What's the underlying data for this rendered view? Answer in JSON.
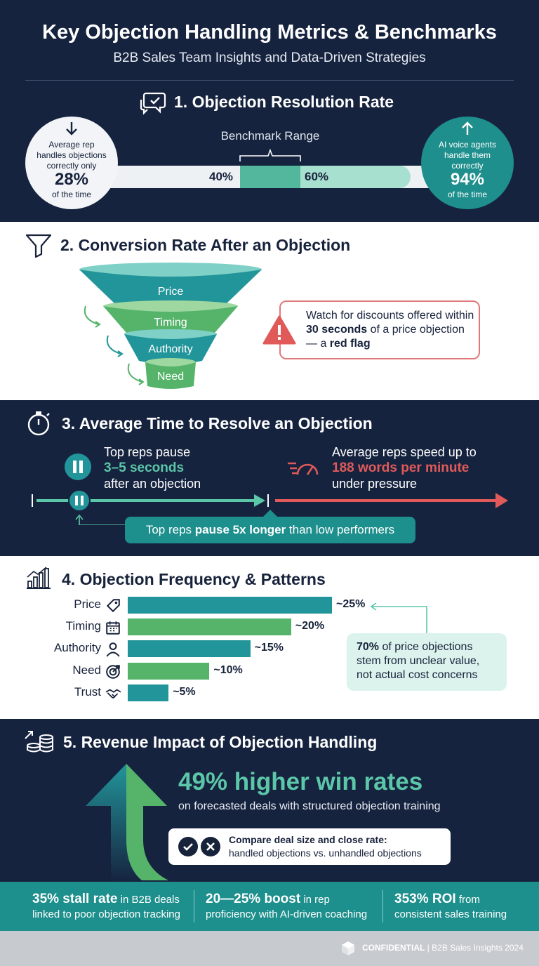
{
  "header": {
    "title": "Key Objection Handling Metrics & Benchmarks",
    "subtitle": "B2B Sales Team Insights and Data-Driven Strategies"
  },
  "s1": {
    "title": "1. Objection Resolution Rate",
    "left": {
      "line1": "Average rep",
      "line2": "handles objections",
      "line3": "correctly only",
      "value": "28%",
      "line4": "of the time"
    },
    "right": {
      "line1": "AI voice agents",
      "line2": "handle them",
      "line3": "correctly",
      "value": "94%",
      "line4": "of the time"
    },
    "benchmark_label": "Benchmark Range",
    "low": "40%",
    "high": "60%"
  },
  "s2": {
    "title": "2. Conversion Rate After an Objection",
    "funnel": [
      "Price",
      "Timing",
      "Authority",
      "Need"
    ],
    "alert": {
      "pre": "Watch for discounts offered within ",
      "b1": "30 seconds",
      "mid": " of a price objection — a ",
      "b2": "red flag"
    }
  },
  "s3": {
    "title": "3. Average Time to Resolve an Objection",
    "top_reps": {
      "line1": "Top reps pause",
      "value": "3–5 seconds",
      "line2": "after an objection"
    },
    "avg_reps": {
      "line1": "Average reps speed up to",
      "value": "188 words per minute",
      "line2": "under pressure"
    },
    "note": {
      "pre": "Top reps ",
      "bold": "pause 5x longer",
      "post": " than low performers"
    }
  },
  "s4": {
    "title": "4. Objection Frequency & Patterns",
    "bars": [
      {
        "label": "Price",
        "value_label": "~25%",
        "value": 25,
        "color": "#22959a",
        "icon": "price-tag-icon"
      },
      {
        "label": "Timing",
        "value_label": "~20%",
        "value": 20,
        "color": "#55b46a",
        "icon": "calendar-icon"
      },
      {
        "label": "Authority",
        "value_label": "~15%",
        "value": 15,
        "color": "#22959a",
        "icon": "person-icon"
      },
      {
        "label": "Need",
        "value_label": "~10%",
        "value": 10,
        "color": "#55b46a",
        "icon": "target-icon"
      },
      {
        "label": "Trust",
        "value_label": "~5%",
        "value": 5,
        "color": "#22959a",
        "icon": "handshake-icon"
      }
    ],
    "callout": {
      "bold": "70%",
      "text1": " of price objections",
      "text2": "stem from unclear value,",
      "text3": "not actual cost concerns"
    }
  },
  "s5": {
    "title": "5. Revenue Impact of Objection Handling",
    "headline": "49% higher win rates",
    "sub": "on forecasted deals with structured objection training",
    "compare_bold": "Compare deal size and close rate:",
    "compare_text": "handled objections vs. unhandled objections"
  },
  "stats": [
    {
      "bold": "35% stall rate",
      "rest": " in B2B deals",
      "line2": "linked to poor objection tracking"
    },
    {
      "bold": "20—25% boost",
      "rest": " in rep",
      "line2": "proficiency with AI-driven coaching"
    },
    {
      "bold": "353% ROI",
      "rest": " from",
      "line2": "consistent sales training"
    }
  ],
  "footer": {
    "confidential": "CONFIDENTIAL",
    "sep": "|",
    "text": "B2B Sales Insights 2024"
  }
}
